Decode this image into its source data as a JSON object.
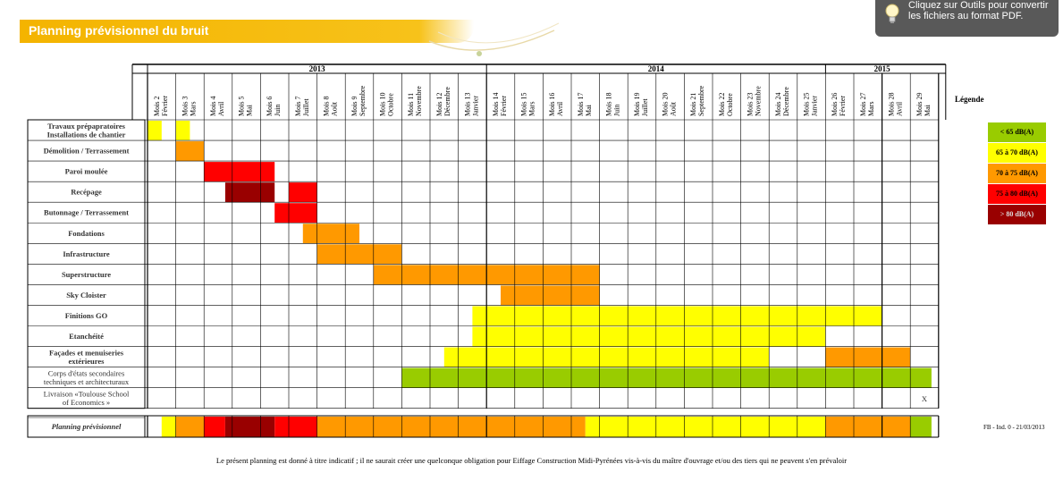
{
  "banner": {
    "title": "Planning prévisionnel du bruit"
  },
  "tooltip": {
    "line1": "Cliquez sur Outils pour convertir",
    "line2": "les fichiers au format PDF."
  },
  "years": [
    {
      "label": "2013",
      "from": 0,
      "to": 11
    },
    {
      "label": "2014",
      "from": 12,
      "to": 23
    },
    {
      "label": "2015",
      "from": 24,
      "to": 27
    }
  ],
  "months": [
    [
      "Mois 2",
      "Février"
    ],
    [
      "Mois 3",
      "Mars"
    ],
    [
      "Mois 4",
      "Avril"
    ],
    [
      "Mois 5",
      "Mai"
    ],
    [
      "Mois 6",
      "Juin"
    ],
    [
      "Mois 7",
      "Juillet"
    ],
    [
      "Mois 8",
      "Août"
    ],
    [
      "Mois 9",
      "Septembre"
    ],
    [
      "Mois 10",
      "Octobre"
    ],
    [
      "Mois 11",
      "Novembre"
    ],
    [
      "Mois 12",
      "Décembre"
    ],
    [
      "Mois 13",
      "Janvier"
    ],
    [
      "Mois 14",
      "Février"
    ],
    [
      "Mois 15",
      "Mars"
    ],
    [
      "Mois 16",
      "Avril"
    ],
    [
      "Mois 17",
      "Mai"
    ],
    [
      "Mois 18",
      "Juin"
    ],
    [
      "Mois 19",
      "Juillet"
    ],
    [
      "Mois 20",
      "Août"
    ],
    [
      "Mois 21",
      "Septembre"
    ],
    [
      "Mois 22",
      "Octobre"
    ],
    [
      "Mois 23",
      "Novembre"
    ],
    [
      "Mois 24",
      "Décembre"
    ],
    [
      "Mois 25",
      "Janvier"
    ],
    [
      "Mois 26",
      "Février"
    ],
    [
      "Mois 27",
      "Mars"
    ],
    [
      "Mois 28",
      "Avril"
    ],
    [
      "Mois 29",
      "Mai"
    ]
  ],
  "tasks": [
    {
      "lines": [
        "Travaux prépapratoires",
        "Installations de chantier"
      ],
      "bold": true,
      "segments": [
        [
          0,
          0.5,
          "y"
        ],
        [
          1,
          1.5,
          "y"
        ]
      ]
    },
    {
      "lines": [
        "Démolition / Terrassement"
      ],
      "bold": true,
      "segments": [
        [
          1,
          2,
          "o"
        ]
      ]
    },
    {
      "lines": [
        "Paroi moulée"
      ],
      "bold": true,
      "segments": [
        [
          2,
          4.5,
          "r"
        ]
      ]
    },
    {
      "lines": [
        "Recépage"
      ],
      "bold": true,
      "segments": [
        [
          2.75,
          4.5,
          "d"
        ],
        [
          5,
          6,
          "r"
        ]
      ]
    },
    {
      "lines": [
        "Butonnage / Terrassement"
      ],
      "bold": true,
      "segments": [
        [
          4.5,
          6,
          "r"
        ]
      ]
    },
    {
      "lines": [
        "Fondations"
      ],
      "bold": true,
      "segments": [
        [
          5.5,
          7.5,
          "o"
        ]
      ]
    },
    {
      "lines": [
        "Infrastructure"
      ],
      "bold": true,
      "segments": [
        [
          6,
          9,
          "o"
        ]
      ]
    },
    {
      "lines": [
        "Superstructure"
      ],
      "bold": true,
      "segments": [
        [
          8,
          16,
          "o"
        ]
      ]
    },
    {
      "lines": [
        "Sky Cloister"
      ],
      "bold": true,
      "segments": [
        [
          12.5,
          16,
          "o"
        ]
      ]
    },
    {
      "lines": [
        "Finitions GO"
      ],
      "bold": true,
      "segments": [
        [
          11.5,
          26,
          "y"
        ]
      ]
    },
    {
      "lines": [
        "Etanchéité"
      ],
      "bold": true,
      "segments": [
        [
          11.5,
          24,
          "y"
        ]
      ]
    },
    {
      "lines": [
        "Façades et menuiseries",
        "extérieures"
      ],
      "bold": true,
      "segments": [
        [
          10.5,
          22,
          "y"
        ],
        [
          24,
          27,
          "o"
        ]
      ]
    },
    {
      "lines": [
        "Corps d'états secondaires",
        "techniques et architecturaux"
      ],
      "bold": false,
      "segments": [
        [
          9,
          27.75,
          "g"
        ]
      ]
    },
    {
      "lines": [
        "Livraison «Toulouse School",
        "of Economics »"
      ],
      "bold": false,
      "segments": [],
      "mark": {
        "col": 27,
        "text": "X"
      }
    }
  ],
  "summary": {
    "label": "Planning prévisionnel",
    "segments": [
      [
        0.5,
        1,
        "y"
      ],
      [
        1,
        2,
        "o"
      ],
      [
        2,
        2.75,
        "r"
      ],
      [
        2.75,
        4.5,
        "d"
      ],
      [
        4.5,
        6,
        "r"
      ],
      [
        6,
        15.5,
        "o"
      ],
      [
        15.5,
        24,
        "y"
      ],
      [
        24,
        27,
        "o"
      ],
      [
        27,
        27.75,
        "g"
      ]
    ]
  },
  "legend": {
    "title": "Légende",
    "items": [
      {
        "label": "< 65 dB(A)",
        "color": "#99cc00"
      },
      {
        "label": "65 à 70 dB(A)",
        "color": "#ffff00"
      },
      {
        "label": "70 à 75 dB(A)",
        "color": "#ff9900"
      },
      {
        "label": "75 à 80 dB(A)",
        "color": "#ff0000"
      },
      {
        "label": "> 80 dB(A)",
        "color": "#990000"
      }
    ]
  },
  "colors": {
    "y": "#ffff00",
    "o": "#ff9900",
    "r": "#ff0000",
    "d": "#990000",
    "g": "#99cc00"
  },
  "reference": "FB - Ind. 0 - 21/03/2013",
  "footnote": "Le présent planning est donné à titre indicatif ; il ne saurait créer une quelconque obligation pour Eiffage Construction Midi-Pyrénées vis-à-vis du maître d'ouvrage et/ou des tiers qui ne peuvent s'en prévaloir"
}
